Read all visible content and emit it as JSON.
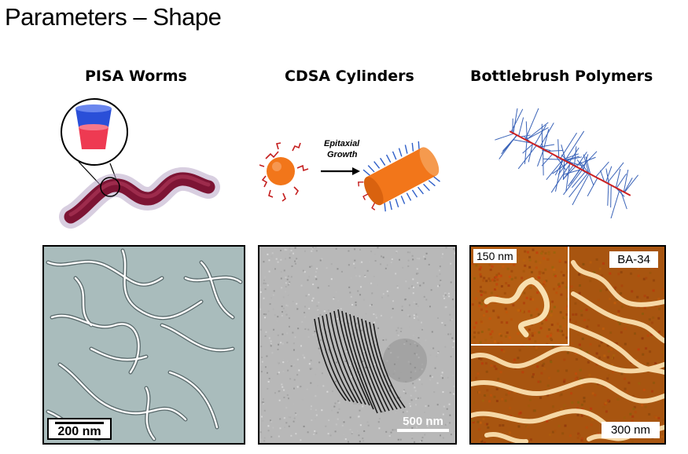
{
  "slide": {
    "title": "Parameters – Shape"
  },
  "columns": [
    {
      "title": "PISA Worms",
      "scale_bar": "200 nm"
    },
    {
      "title": "CDSA Cylinders",
      "annotation_line1": "Epitaxial",
      "annotation_line2": "Growth",
      "scale_bar": "500 nm"
    },
    {
      "title": "Bottlebrush Polymers",
      "sample_label": "BA-34",
      "inset_scale": "150 nm",
      "scale_bar": "300 nm"
    }
  ],
  "colors": {
    "worm": "#8a1a3a",
    "cylinder": "#f07a1e",
    "chain_red": "#cc2020",
    "brush_blue": "#3a63b8",
    "afm": "#b05a10"
  }
}
